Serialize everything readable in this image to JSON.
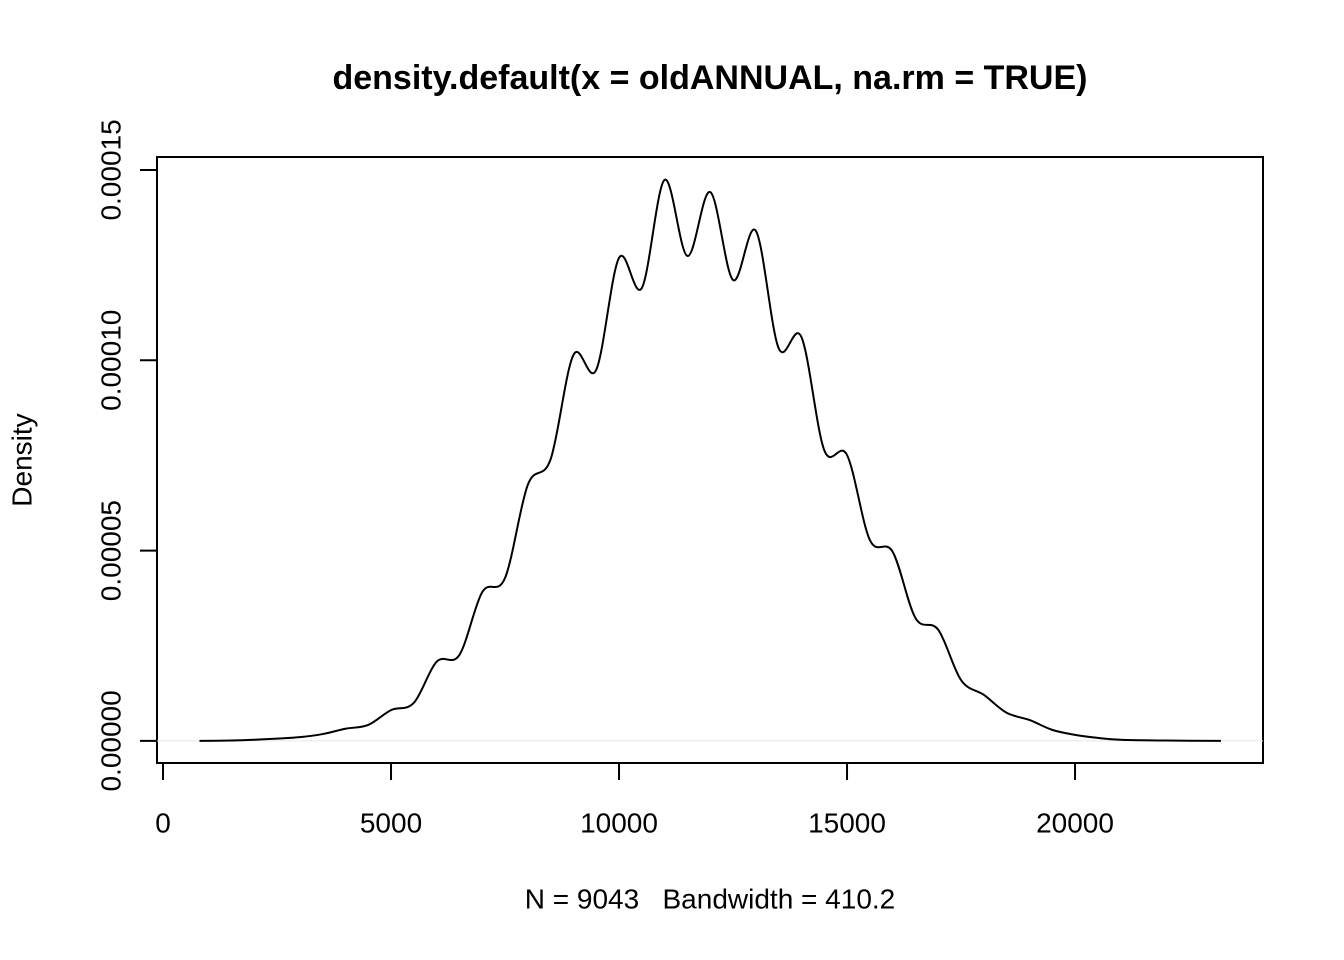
{
  "chart_data": {
    "type": "line",
    "title": "density.default(x = oldANNUAL, na.rm = TRUE)",
    "x_label": "N = 9043   Bandwidth = 410.2",
    "y_label": "Density",
    "x": [
      800,
      1500,
      2000,
      2500,
      3000,
      3500,
      4000,
      4500,
      5000,
      5500,
      6000,
      6500,
      7000,
      7500,
      8000,
      8500,
      9000,
      9500,
      10000,
      10500,
      11000,
      11500,
      12000,
      12500,
      13000,
      13500,
      14000,
      14500,
      15000,
      15500,
      16000,
      16500,
      17000,
      17500,
      18000,
      18500,
      19000,
      19500,
      20000,
      20500,
      21000,
      22000,
      23200
    ],
    "series": [
      {
        "name": "density",
        "color": "#000000",
        "values": [
          0,
          1e-07,
          3e-07,
          6e-07,
          1e-06,
          1.8e-06,
          3.2e-06,
          4.2e-06,
          8.1e-06,
          1e-05,
          2.08e-05,
          2.26e-05,
          3.91e-05,
          4.28e-05,
          6.73e-05,
          7.4e-05,
          0.0001014,
          9.75e-05,
          0.0001269,
          0.000119,
          0.0001474,
          0.0001274,
          0.0001442,
          0.0001211,
          0.000134,
          0.0001032,
          0.0001061,
          7.64e-05,
          7.51e-05,
          5.28e-05,
          4.97e-05,
          3.23e-05,
          2.92e-05,
          1.6e-05,
          1.21e-05,
          7.4e-06,
          5.5e-06,
          2.9e-06,
          1.6e-06,
          8e-07,
          3e-07,
          1e-07,
          0
        ]
      }
    ],
    "xlim": [
      -132,
      24122
    ],
    "ylim": [
      -5.8e-06,
      0.0001534
    ],
    "xticks": [
      0,
      5000,
      10000,
      15000,
      20000
    ],
    "yticks": [
      {
        "value": 0,
        "label": "0.00000"
      },
      {
        "value": 5e-05,
        "label": "0.00005"
      },
      {
        "value": 0.0001,
        "label": "0.00010"
      },
      {
        "value": 0.00015,
        "label": "0.00015"
      }
    ]
  }
}
